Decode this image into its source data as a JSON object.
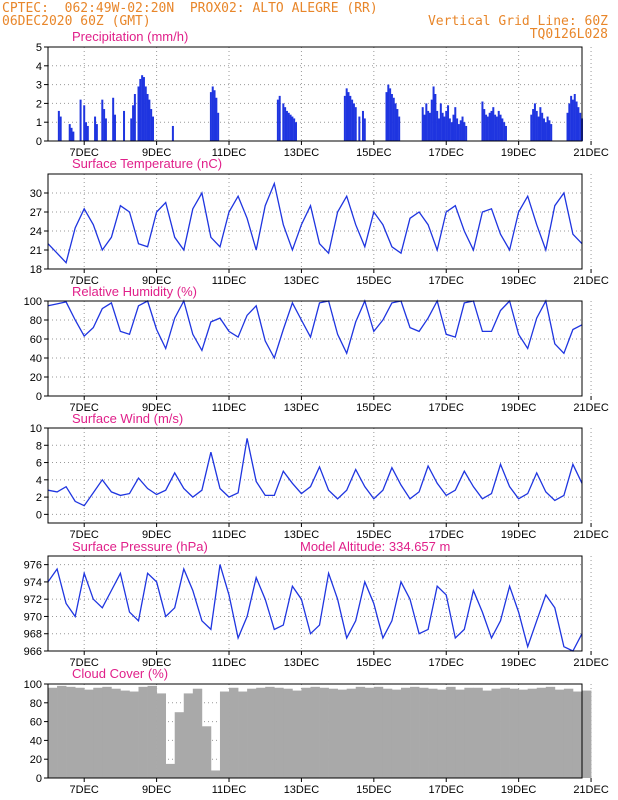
{
  "header": {
    "line1_left": "CPTEC:  062:49W-02:20N  PROX02: ALTO ALEGRE (RR)",
    "line2_left": "06DEC2020 60Z (GMT)",
    "line2_right": "Vertical Grid Line: 60Z",
    "line3_right": "TQ0126L028"
  },
  "colors": {
    "line": "#1f35e0",
    "bar": "#1f35e0",
    "cloud": "#a9a9a9",
    "title": "#e0208a",
    "header": "#e8862a"
  },
  "x_axis": {
    "start": "06DEC2020 06Z",
    "end": "21DEC2020 00Z",
    "tick_labels": [
      "7DEC",
      "9DEC",
      "11DEC",
      "13DEC",
      "15DEC",
      "17DEC",
      "19DEC",
      "21DEC"
    ],
    "tick_days": [
      1,
      3,
      5,
      7,
      9,
      11,
      13,
      15
    ]
  },
  "chart_data": [
    {
      "type": "bar",
      "title": "Precipitation (mm/h)",
      "ylim": [
        0,
        5
      ],
      "yticks": [
        0,
        1,
        2,
        3,
        4,
        5
      ],
      "x_days": [
        0.3,
        0.35,
        0.6,
        0.65,
        0.7,
        0.9,
        1.0,
        1.05,
        1.1,
        1.3,
        1.35,
        1.5,
        1.55,
        1.6,
        1.8,
        1.85,
        2.1,
        2.3,
        2.35,
        2.4,
        2.5,
        2.55,
        2.6,
        2.65,
        2.7,
        2.75,
        2.8,
        2.85,
        2.9,
        3.45,
        4.5,
        4.55,
        4.6,
        4.65,
        4.7,
        6.35,
        6.4,
        6.5,
        6.55,
        6.6,
        6.65,
        6.7,
        6.75,
        6.8,
        6.85,
        8.2,
        8.25,
        8.3,
        8.35,
        8.4,
        8.45,
        8.5,
        8.6,
        8.7,
        8.75,
        9.35,
        9.4,
        9.45,
        9.5,
        9.55,
        9.6,
        9.65,
        9.7,
        10.35,
        10.4,
        10.45,
        10.5,
        10.55,
        10.6,
        10.65,
        10.7,
        10.75,
        10.8,
        10.85,
        10.9,
        10.95,
        11.0,
        11.05,
        11.1,
        11.15,
        11.2,
        11.25,
        11.3,
        11.35,
        11.4,
        11.45,
        11.5,
        11.55,
        12.0,
        12.05,
        12.1,
        12.15,
        12.2,
        12.25,
        12.3,
        12.35,
        12.4,
        12.45,
        12.5,
        12.55,
        12.6,
        12.65,
        13.35,
        13.4,
        13.45,
        13.5,
        13.55,
        13.6,
        13.65,
        13.7,
        13.75,
        13.8,
        13.85,
        13.9,
        14.35,
        14.4,
        14.45,
        14.5,
        14.55,
        14.6,
        14.65,
        14.7,
        14.75
      ],
      "values": [
        1.6,
        1.3,
        0.9,
        0.7,
        0.5,
        2.2,
        1.9,
        1.0,
        0.8,
        1.3,
        0.9,
        2.2,
        1.7,
        1.2,
        2.3,
        1.4,
        1.6,
        1.2,
        1.9,
        2.5,
        2.9,
        3.3,
        3.5,
        3.4,
        2.9,
        2.5,
        2.2,
        1.7,
        1.3,
        0.8,
        2.6,
        2.9,
        2.7,
        2.3,
        1.5,
        2.2,
        2.4,
        2.0,
        1.8,
        1.6,
        1.5,
        1.4,
        1.3,
        1.2,
        1.0,
        2.4,
        2.8,
        2.6,
        2.4,
        2.2,
        2.0,
        1.8,
        1.3,
        1.6,
        1.2,
        2.6,
        3.0,
        2.8,
        2.5,
        2.3,
        2.0,
        1.7,
        1.3,
        1.8,
        1.4,
        2.0,
        1.6,
        1.5,
        2.2,
        2.9,
        2.5,
        1.6,
        1.2,
        2.0,
        1.5,
        1.3,
        1.6,
        1.9,
        1.2,
        1.0,
        1.4,
        1.8,
        1.2,
        0.9,
        1.1,
        1.3,
        1.0,
        0.8,
        2.1,
        1.7,
        1.4,
        1.3,
        1.5,
        1.6,
        1.8,
        1.4,
        1.3,
        1.6,
        1.4,
        1.2,
        1.0,
        0.8,
        1.4,
        1.7,
        2.0,
        1.6,
        1.3,
        1.8,
        1.5,
        1.2,
        1.0,
        1.3,
        1.1,
        0.9,
        1.5,
        2.0,
        2.4,
        2.2,
        2.5,
        2.1,
        1.8,
        1.5,
        1.2
      ]
    },
    {
      "type": "line",
      "title": "Surface Temperature (nC)",
      "ylim": [
        18,
        33
      ],
      "yticks": [
        18,
        21,
        24,
        27,
        30
      ],
      "x_days": [
        0,
        0.25,
        0.5,
        0.75,
        1,
        1.25,
        1.5,
        1.75,
        2,
        2.25,
        2.5,
        2.75,
        3,
        3.25,
        3.5,
        3.75,
        4,
        4.25,
        4.5,
        4.75,
        5,
        5.25,
        5.5,
        5.75,
        6,
        6.25,
        6.5,
        6.75,
        7,
        7.25,
        7.5,
        7.75,
        8,
        8.25,
        8.5,
        8.75,
        9,
        9.25,
        9.5,
        9.75,
        10,
        10.25,
        10.5,
        10.75,
        11,
        11.25,
        11.5,
        11.75,
        12,
        12.25,
        12.5,
        12.75,
        13,
        13.25,
        13.5,
        13.75,
        14,
        14.25,
        14.5,
        14.75
      ],
      "values": [
        22,
        20.5,
        19,
        24.5,
        27.5,
        25,
        21,
        23,
        28,
        27,
        22,
        21.5,
        27,
        28.5,
        23,
        21,
        27.5,
        30,
        23,
        21.5,
        27,
        29.5,
        26,
        21,
        28,
        31.5,
        25,
        21,
        25,
        28,
        22,
        20.5,
        27,
        29.5,
        25,
        21.5,
        27,
        25,
        21.5,
        20.5,
        26,
        27,
        25,
        21,
        27,
        28,
        24,
        21,
        27,
        27.5,
        23.5,
        21,
        27,
        29.5,
        25,
        21,
        28,
        30,
        23.5,
        22
      ]
    },
    {
      "type": "line",
      "title": "Relative Humidity (%)",
      "ylim": [
        0,
        100
      ],
      "yticks": [
        0,
        20,
        40,
        60,
        80,
        100
      ],
      "x_days": [
        0,
        0.25,
        0.5,
        0.75,
        1,
        1.25,
        1.5,
        1.75,
        2,
        2.25,
        2.5,
        2.75,
        3,
        3.25,
        3.5,
        3.75,
        4,
        4.25,
        4.5,
        4.75,
        5,
        5.25,
        5.5,
        5.75,
        6,
        6.25,
        6.5,
        6.75,
        7,
        7.25,
        7.5,
        7.75,
        8,
        8.25,
        8.5,
        8.75,
        9,
        9.25,
        9.5,
        9.75,
        10,
        10.25,
        10.5,
        10.75,
        11,
        11.25,
        11.5,
        11.75,
        12,
        12.25,
        12.5,
        12.75,
        13,
        13.25,
        13.5,
        13.75,
        14,
        14.25,
        14.5,
        14.75
      ],
      "values": [
        95,
        97,
        99,
        80,
        63,
        72,
        92,
        98,
        68,
        65,
        95,
        100,
        70,
        50,
        82,
        100,
        65,
        48,
        78,
        82,
        68,
        62,
        85,
        95,
        58,
        40,
        70,
        98,
        80,
        62,
        98,
        100,
        65,
        45,
        78,
        100,
        68,
        80,
        98,
        100,
        72,
        68,
        82,
        100,
        65,
        62,
        98,
        100,
        68,
        68,
        90,
        100,
        65,
        50,
        82,
        100,
        55,
        45,
        70,
        75
      ]
    },
    {
      "type": "line",
      "title": "Surface Wind (m/s)",
      "ylim": [
        -1,
        10
      ],
      "yticks": [
        0,
        2,
        4,
        6,
        8,
        10
      ],
      "x_days": [
        0,
        0.25,
        0.5,
        0.75,
        1,
        1.25,
        1.5,
        1.75,
        2,
        2.25,
        2.5,
        2.75,
        3,
        3.25,
        3.5,
        3.75,
        4,
        4.25,
        4.5,
        4.75,
        5,
        5.25,
        5.5,
        5.75,
        6,
        6.25,
        6.5,
        6.75,
        7,
        7.25,
        7.5,
        7.75,
        8,
        8.25,
        8.5,
        8.75,
        9,
        9.25,
        9.5,
        9.75,
        10,
        10.25,
        10.5,
        10.75,
        11,
        11.25,
        11.5,
        11.75,
        12,
        12.25,
        12.5,
        12.75,
        13,
        13.25,
        13.5,
        13.75,
        14,
        14.25,
        14.5,
        14.75
      ],
      "values": [
        2.8,
        2.6,
        3.2,
        1.5,
        1.0,
        2.5,
        4.0,
        2.6,
        2.2,
        2.4,
        4.2,
        3.0,
        2.3,
        2.8,
        4.8,
        3.0,
        2.0,
        2.8,
        7.2,
        3.0,
        2.0,
        2.5,
        8.8,
        3.8,
        2.2,
        2.2,
        5.0,
        3.6,
        2.4,
        3.2,
        5.5,
        2.8,
        1.8,
        2.8,
        5.2,
        3.2,
        1.8,
        2.8,
        5.4,
        3.4,
        1.8,
        2.6,
        5.6,
        3.6,
        2.2,
        2.8,
        5.0,
        3.2,
        1.8,
        2.4,
        5.8,
        3.2,
        1.8,
        2.4,
        4.8,
        2.6,
        1.6,
        2.2,
        5.8,
        3.6
      ]
    },
    {
      "type": "line",
      "title": "Surface Pressure (hPa)",
      "annotation": "Model Altitude: 334.657 m",
      "ylim": [
        966,
        977
      ],
      "yticks": [
        966,
        968,
        970,
        972,
        974,
        976
      ],
      "x_days": [
        0,
        0.25,
        0.5,
        0.75,
        1,
        1.25,
        1.5,
        1.75,
        2,
        2.25,
        2.5,
        2.75,
        3,
        3.25,
        3.5,
        3.75,
        4,
        4.25,
        4.5,
        4.75,
        5,
        5.25,
        5.5,
        5.75,
        6,
        6.25,
        6.5,
        6.75,
        7,
        7.25,
        7.5,
        7.75,
        8,
        8.25,
        8.5,
        8.75,
        9,
        9.25,
        9.5,
        9.75,
        10,
        10.25,
        10.5,
        10.75,
        11,
        11.25,
        11.5,
        11.75,
        12,
        12.25,
        12.5,
        12.75,
        13,
        13.25,
        13.5,
        13.75,
        14,
        14.25,
        14.5,
        14.75
      ],
      "values": [
        974,
        975.5,
        971.5,
        970,
        975,
        972,
        971,
        973,
        975,
        970.5,
        969.5,
        975,
        974,
        970,
        971,
        975.5,
        973,
        969.5,
        968.5,
        976,
        972.5,
        967.5,
        970,
        974.5,
        972,
        968.5,
        969,
        973.5,
        972,
        968,
        969,
        975,
        972,
        967.5,
        969.5,
        974,
        971.5,
        967.5,
        969.5,
        974,
        972,
        968,
        968.5,
        973.5,
        972.5,
        967.5,
        968.5,
        973,
        970.5,
        967.5,
        969.5,
        973.5,
        970.5,
        966.5,
        969.5,
        972.5,
        971,
        966.5,
        966,
        968
      ]
    },
    {
      "type": "area",
      "title": "Cloud Cover (%)",
      "ylim": [
        0,
        100
      ],
      "yticks": [
        0,
        20,
        40,
        60,
        80,
        100
      ],
      "x_days": [
        0,
        0.25,
        0.5,
        0.75,
        1,
        1.25,
        1.5,
        1.75,
        2,
        2.25,
        2.5,
        2.75,
        3,
        3.25,
        3.5,
        3.75,
        4,
        4.25,
        4.5,
        4.75,
        5,
        5.25,
        5.5,
        5.75,
        6,
        6.25,
        6.5,
        6.75,
        7,
        7.25,
        7.5,
        7.75,
        8,
        8.25,
        8.5,
        8.75,
        9,
        9.25,
        9.5,
        9.75,
        10,
        10.25,
        10.5,
        10.75,
        11,
        11.25,
        11.5,
        11.75,
        12,
        12.25,
        12.5,
        12.75,
        13,
        13.25,
        13.5,
        13.75,
        14,
        14.25,
        14.5,
        14.75
      ],
      "values": [
        96,
        98,
        97,
        96,
        94,
        96,
        97,
        95,
        93,
        92,
        97,
        98,
        90,
        15,
        70,
        90,
        95,
        55,
        8,
        92,
        96,
        92,
        95,
        96,
        97,
        96,
        95,
        93,
        96,
        97,
        96,
        95,
        94,
        95,
        97,
        96,
        97,
        95,
        94,
        96,
        97,
        96,
        95,
        94,
        97,
        94,
        96,
        96,
        93,
        95,
        96,
        95,
        94,
        95,
        96,
        97,
        94,
        95,
        92,
        93
      ]
    }
  ]
}
